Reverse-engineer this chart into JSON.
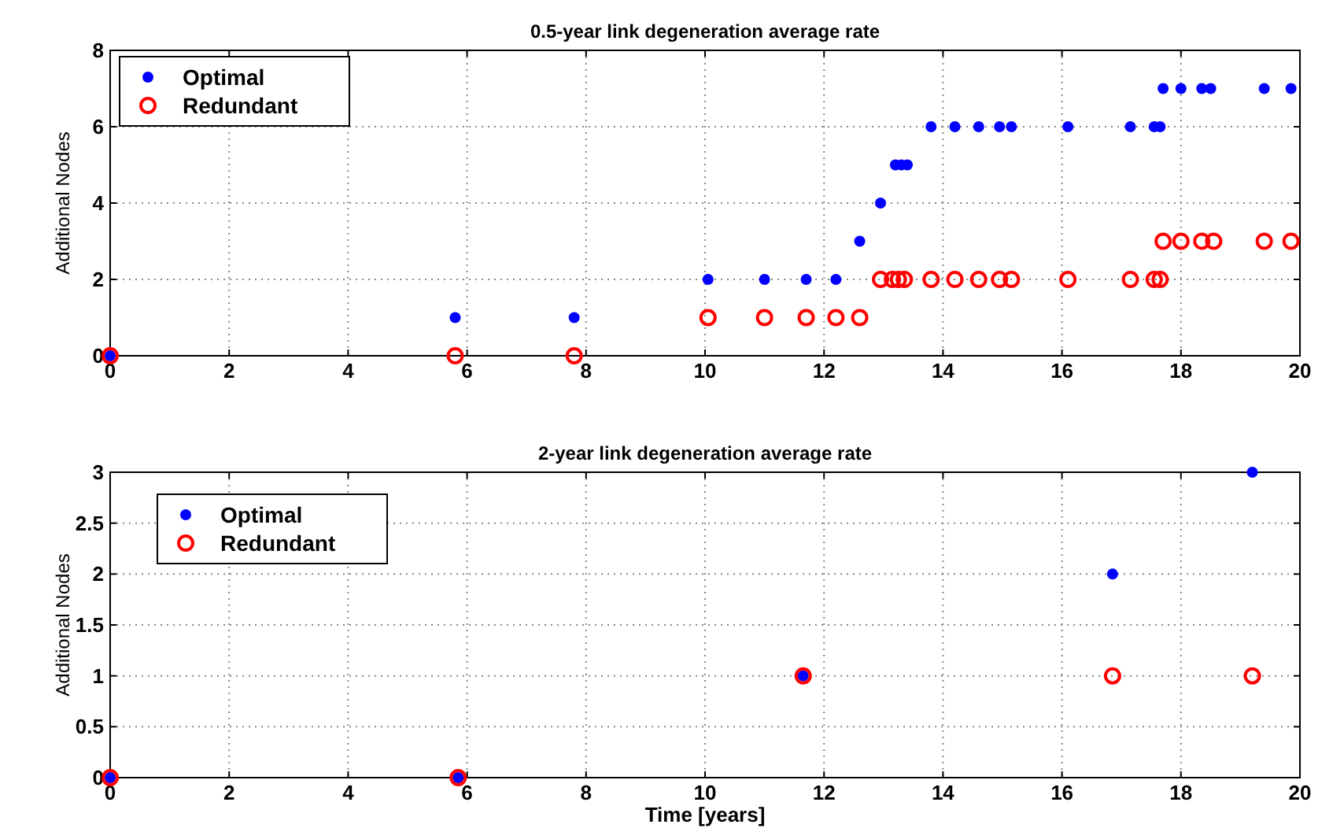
{
  "chart_data": [
    {
      "type": "scatter",
      "title": "0.5-year link degeneration average rate",
      "ylabel": "Additional Nodes",
      "xlim": [
        0,
        20
      ],
      "xticks": [
        0,
        2,
        4,
        6,
        8,
        10,
        12,
        14,
        16,
        18,
        20
      ],
      "ylim": [
        0,
        8
      ],
      "yticks": [
        0,
        2,
        4,
        6,
        8
      ],
      "grid": true,
      "legend": "top left",
      "marker": "circle",
      "series": [
        {
          "name": "Optimal",
          "color": "#0000ff",
          "x": [
            0,
            5.8,
            7.8,
            10.05,
            11,
            11.7,
            12.2,
            12.6,
            12.95,
            13.2,
            13.3,
            13.4,
            13.8,
            14.2,
            14.6,
            14.95,
            15.15,
            16.1,
            17.15,
            17.55,
            17.65,
            17.7,
            18.0,
            18.35,
            18.5,
            19.4,
            19.85
          ],
          "values": [
            0,
            1,
            1,
            2,
            2,
            2,
            2,
            3,
            4,
            5,
            5,
            5,
            6,
            6,
            6,
            6,
            6,
            6,
            6,
            6,
            6,
            7,
            7,
            7,
            7,
            7,
            7
          ]
        },
        {
          "name": "Redundant",
          "color": "#ff0000",
          "x": [
            0,
            5.8,
            7.8,
            10.05,
            11,
            11.7,
            12.2,
            12.6,
            12.95,
            13.15,
            13.25,
            13.35,
            13.8,
            14.2,
            14.6,
            14.95,
            15.15,
            16.1,
            17.15,
            17.55,
            17.65,
            17.7,
            18.0,
            18.35,
            18.55,
            19.4,
            19.85
          ],
          "values": [
            0,
            0,
            0,
            1,
            1,
            1,
            1,
            1,
            2,
            2,
            2,
            2,
            2,
            2,
            2,
            2,
            2,
            2,
            2,
            2,
            2,
            3,
            3,
            3,
            3,
            3,
            3
          ]
        }
      ]
    },
    {
      "type": "scatter",
      "title": "2-year link degeneration average rate",
      "xlabel": "Time [years]",
      "ylabel": "Additional Nodes",
      "xlim": [
        0,
        20
      ],
      "xticks": [
        0,
        2,
        4,
        6,
        8,
        10,
        12,
        14,
        16,
        18,
        20
      ],
      "ylim": [
        0,
        3
      ],
      "yticks": [
        0,
        0.5,
        1,
        1.5,
        2,
        2.5,
        3
      ],
      "grid": true,
      "legend": "top left",
      "marker": "circle",
      "series": [
        {
          "name": "Optimal",
          "color": "#0000ff",
          "x": [
            0,
            5.85,
            11.65,
            16.85,
            19.2
          ],
          "values": [
            0,
            0,
            1,
            2,
            3
          ]
        },
        {
          "name": "Redundant",
          "color": "#ff0000",
          "x": [
            0,
            5.85,
            11.65,
            16.85,
            19.2
          ],
          "values": [
            0,
            0,
            1,
            1,
            1
          ]
        }
      ]
    }
  ]
}
